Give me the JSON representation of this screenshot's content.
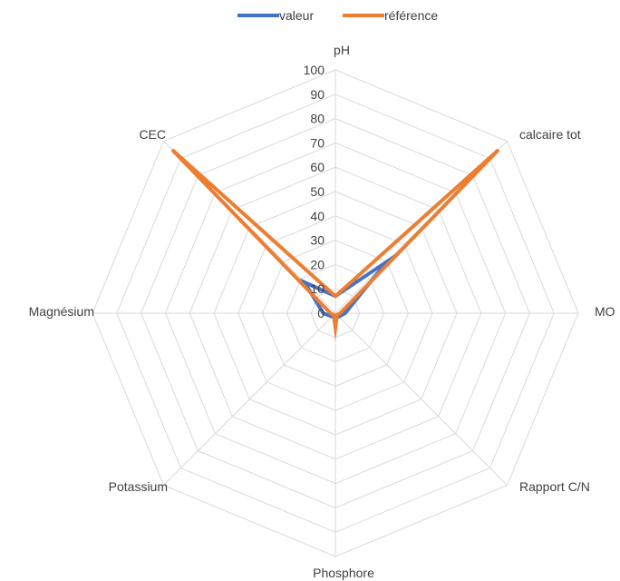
{
  "chart_data": {
    "type": "radar",
    "categories": [
      "pH",
      "calcaire tot",
      "MO",
      "Rapport C/N",
      "Phosphore",
      "Potassium",
      "Magnésium",
      "CEC"
    ],
    "series": [
      {
        "name": "valeur",
        "values": [
          7,
          30,
          4,
          2,
          2,
          2,
          5,
          18
        ],
        "color": "#4472C4"
      },
      {
        "name": "référence",
        "values": [
          7,
          95,
          2,
          1,
          6,
          1,
          2,
          95
        ],
        "color": "#ED7D31"
      }
    ],
    "rlim": [
      0,
      100
    ],
    "ticks": [
      0,
      10,
      20,
      30,
      40,
      50,
      60,
      70,
      80,
      90,
      100
    ],
    "tick_labels": [
      "0",
      "10",
      "20",
      "30",
      "40",
      "50",
      "60",
      "70",
      "80",
      "90",
      "100"
    ],
    "grid": true,
    "legend_position": "top",
    "grid_color": "#D9D9D9"
  }
}
